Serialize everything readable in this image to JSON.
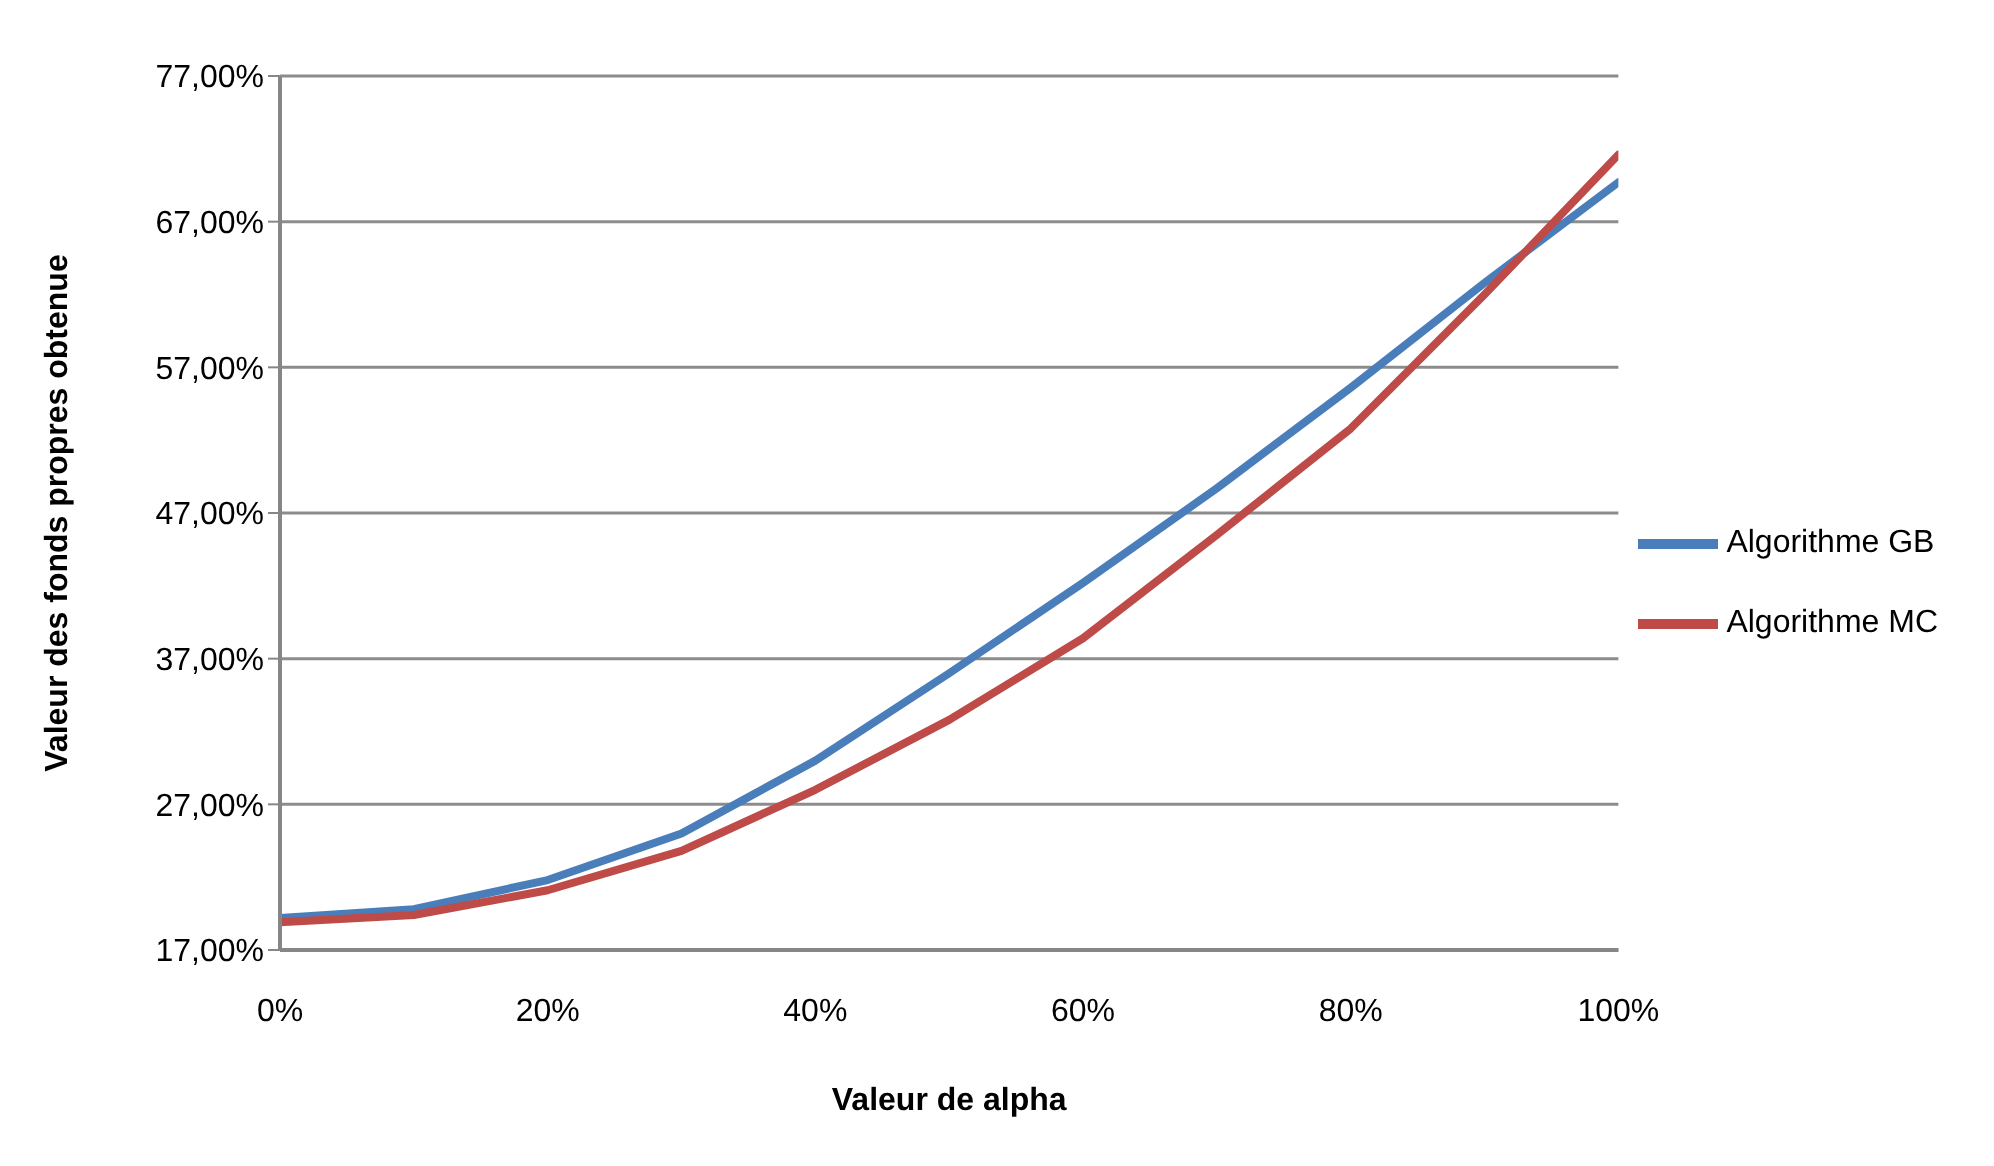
{
  "chart_data": {
    "type": "line",
    "xlabel": "Valeur de alpha",
    "ylabel": "Valeur des fonds propres obtenue",
    "x": [
      0,
      10,
      20,
      30,
      40,
      50,
      60,
      70,
      80,
      90,
      100
    ],
    "series": [
      {
        "name": "Algorithme GB",
        "color": "#4a7ebb",
        "values": [
          19.2,
          19.8,
          21.8,
          25.0,
          30.0,
          36.0,
          42.2,
          48.7,
          55.6,
          62.8,
          69.7
        ]
      },
      {
        "name": "Algorithme MC",
        "color": "#be4b48",
        "values": [
          18.9,
          19.4,
          21.1,
          23.8,
          28.0,
          32.8,
          38.4,
          45.5,
          52.8,
          62.0,
          71.6
        ]
      }
    ],
    "xlim": [
      0,
      100
    ],
    "xticks": [
      {
        "value": 0,
        "label": "0%"
      },
      {
        "value": 20,
        "label": "20%"
      },
      {
        "value": 40,
        "label": "40%"
      },
      {
        "value": 60,
        "label": "60%"
      },
      {
        "value": 80,
        "label": "80%"
      },
      {
        "value": 100,
        "label": "100%"
      }
    ],
    "ylim": [
      17,
      77
    ],
    "yticks": [
      {
        "value": 17,
        "label": "17,00%"
      },
      {
        "value": 27,
        "label": "27,00%"
      },
      {
        "value": 37,
        "label": "37,00%"
      },
      {
        "value": 47,
        "label": "47,00%"
      },
      {
        "value": 57,
        "label": "57,00%"
      },
      {
        "value": 67,
        "label": "67,00%"
      },
      {
        "value": 77,
        "label": "77,00%"
      }
    ],
    "grid": "y",
    "legend": "right",
    "marker": "none",
    "line_style": "solid"
  }
}
